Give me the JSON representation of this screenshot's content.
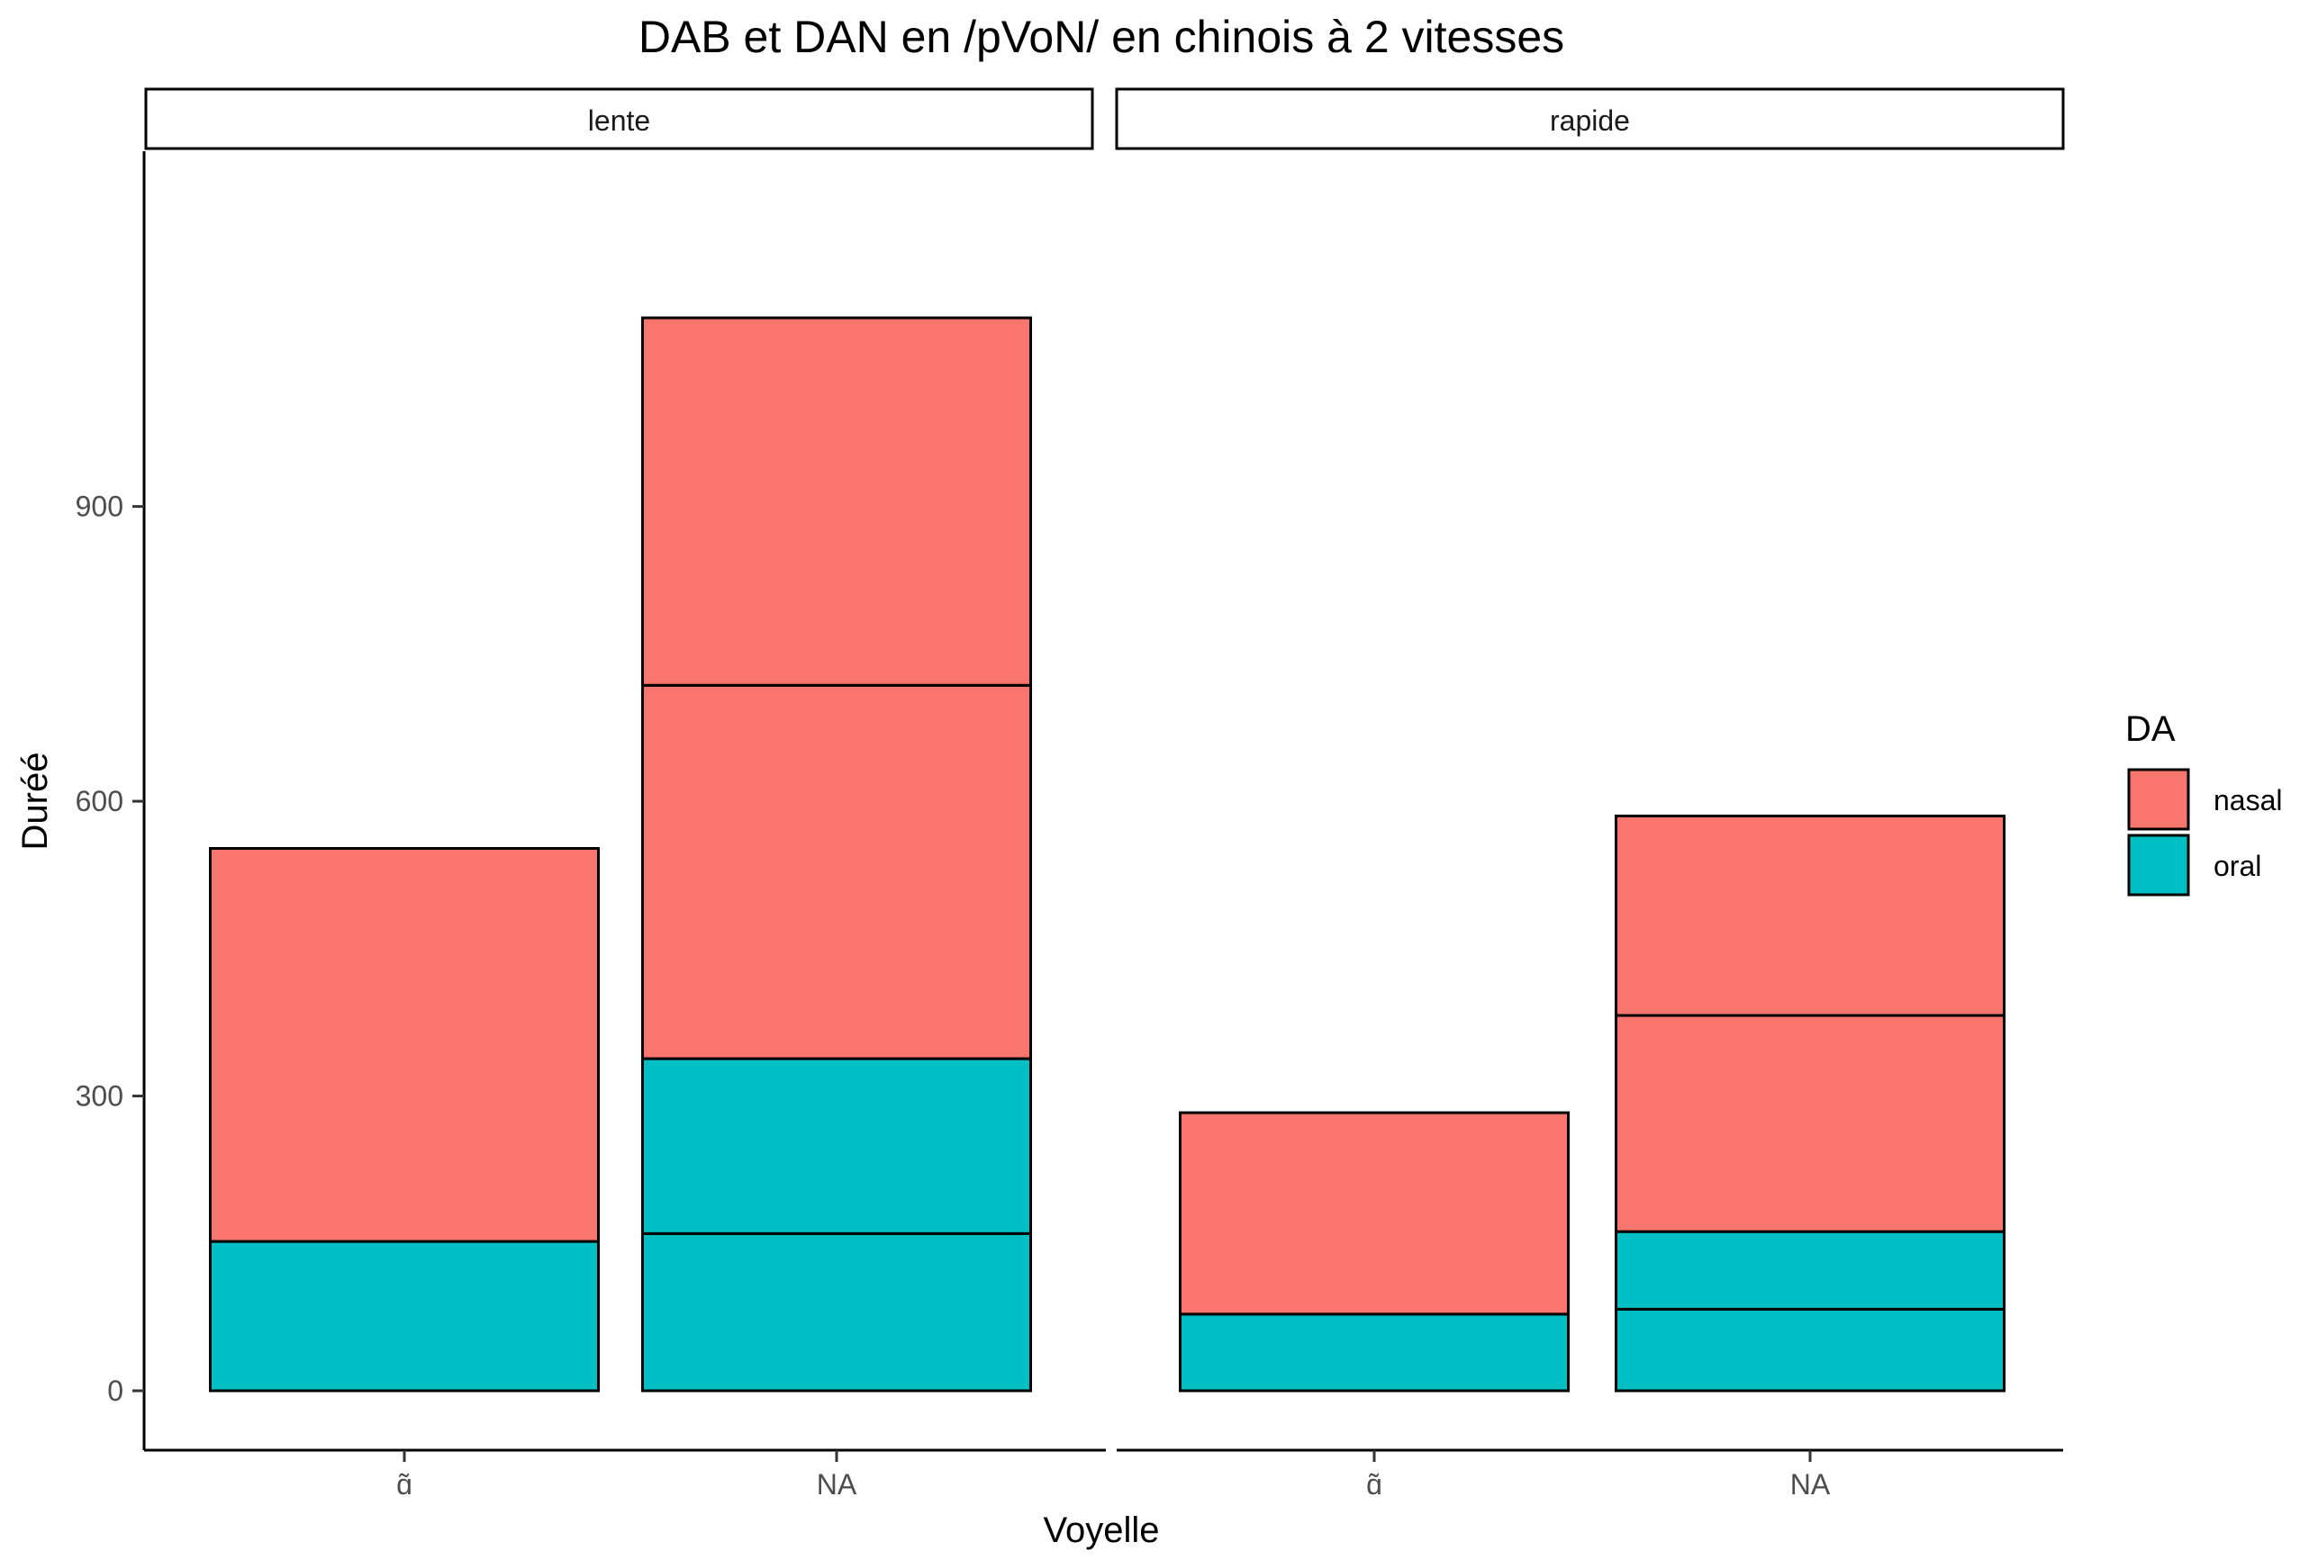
{
  "chart_data": {
    "type": "bar",
    "title": "DAB et DAN en /pVoN/ en chinois à 2 vitesses",
    "xlabel": "Voyelle",
    "ylabel": "Duréé",
    "ylim": [
      0,
      1130
    ],
    "yticks": [
      0,
      300,
      600,
      900
    ],
    "grid": false,
    "legend": {
      "title": "DA",
      "position": "right",
      "entries": [
        {
          "name": "nasal",
          "color": "#F8766D"
        },
        {
          "name": "oral",
          "color": "#00BFC4"
        }
      ]
    },
    "facets": [
      {
        "label": "lente",
        "categories": [
          "ɑ̃",
          "NA"
        ],
        "bars": [
          {
            "category": "ɑ̃",
            "segments": [
              {
                "DA": "oral",
                "value": 152
              },
              {
                "DA": "nasal",
                "value": 400
              }
            ]
          },
          {
            "category": "NA",
            "segments": [
              {
                "DA": "oral",
                "value": 160
              },
              {
                "DA": "oral",
                "value": 178
              },
              {
                "DA": "nasal",
                "value": 380
              },
              {
                "DA": "nasal",
                "value": 374
              }
            ]
          }
        ]
      },
      {
        "label": "rapide",
        "categories": [
          "ɑ̃",
          "NA"
        ],
        "bars": [
          {
            "category": "ɑ̃",
            "segments": [
              {
                "DA": "oral",
                "value": 78
              },
              {
                "DA": "nasal",
                "value": 205
              }
            ]
          },
          {
            "category": "NA",
            "segments": [
              {
                "DA": "oral",
                "value": 83
              },
              {
                "DA": "oral",
                "value": 79
              },
              {
                "DA": "nasal",
                "value": 220
              },
              {
                "DA": "nasal",
                "value": 203
              }
            ]
          }
        ]
      }
    ]
  }
}
